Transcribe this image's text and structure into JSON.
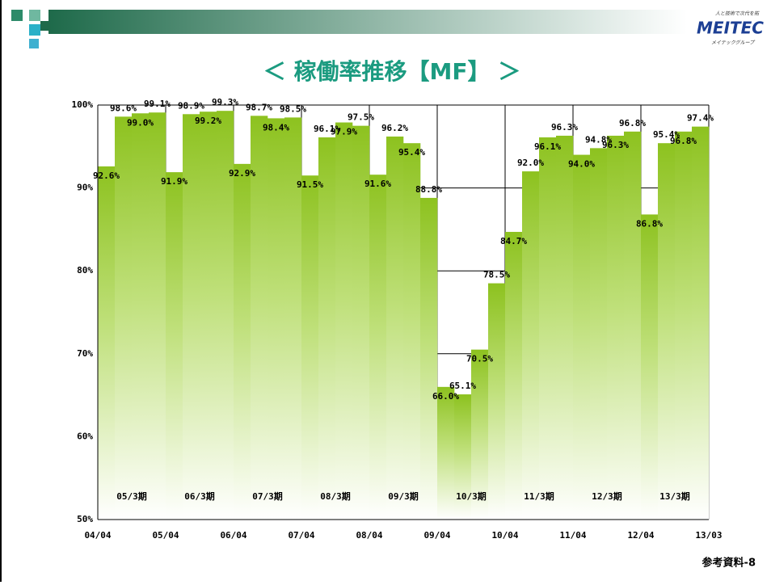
{
  "header": {
    "logo": "MEITEC",
    "logo_tagline": "人と技術で次代を拓",
    "logo_group": "メイテックグループ"
  },
  "footer": "参考資料-8",
  "chart_data": {
    "type": "bar",
    "title": "＜ 稼働率推移【MF】 ＞",
    "color": "#8dc21f",
    "values": [
      92.6,
      98.6,
      99.0,
      99.1,
      91.9,
      98.9,
      99.2,
      99.3,
      92.9,
      98.7,
      98.4,
      98.5,
      91.5,
      96.1,
      97.9,
      97.5,
      91.6,
      96.2,
      95.4,
      88.8,
      66.0,
      65.1,
      70.5,
      78.5,
      84.7,
      92.0,
      96.1,
      96.3,
      94.0,
      94.8,
      96.3,
      96.8,
      86.8,
      95.4,
      96.8,
      97.4
    ],
    "value_labels": [
      "92.6%",
      "98.6%",
      "99.0%",
      "99.1%",
      "91.9%",
      "98.9%",
      "99.2%",
      "99.3%",
      "92.9%",
      "98.7%",
      "98.4%",
      "98.5%",
      "91.5%",
      "96.1%",
      "97.9%",
      "97.5%",
      "91.6%",
      "96.2%",
      "95.4%",
      "88.8%",
      "66.0%",
      "65.1%",
      "70.5%",
      "78.5%",
      "84.7%",
      "92.0%",
      "96.1%",
      "96.3%",
      "94.0%",
      "94.8%",
      "96.3%",
      "96.8%",
      "86.8%",
      "95.4%",
      "96.8%",
      "97.4%"
    ],
    "xtick_labels": [
      "04/04",
      "05/04",
      "06/04",
      "07/04",
      "08/04",
      "09/04",
      "10/04",
      "11/04",
      "12/04",
      "13/03"
    ],
    "period_labels": [
      "05/3期",
      "06/3期",
      "07/3期",
      "08/3期",
      "09/3期",
      "10/3期",
      "11/3期",
      "12/3期",
      "13/3期"
    ],
    "ylim": [
      50,
      100
    ],
    "yticks": [
      {
        "value": 50,
        "label": "50%"
      },
      {
        "value": 60,
        "label": "60%"
      },
      {
        "value": 70,
        "label": "70%"
      },
      {
        "value": 80,
        "label": "80%"
      },
      {
        "value": 90,
        "label": "90%"
      },
      {
        "value": 100,
        "label": "100%"
      }
    ],
    "grid": true
  }
}
